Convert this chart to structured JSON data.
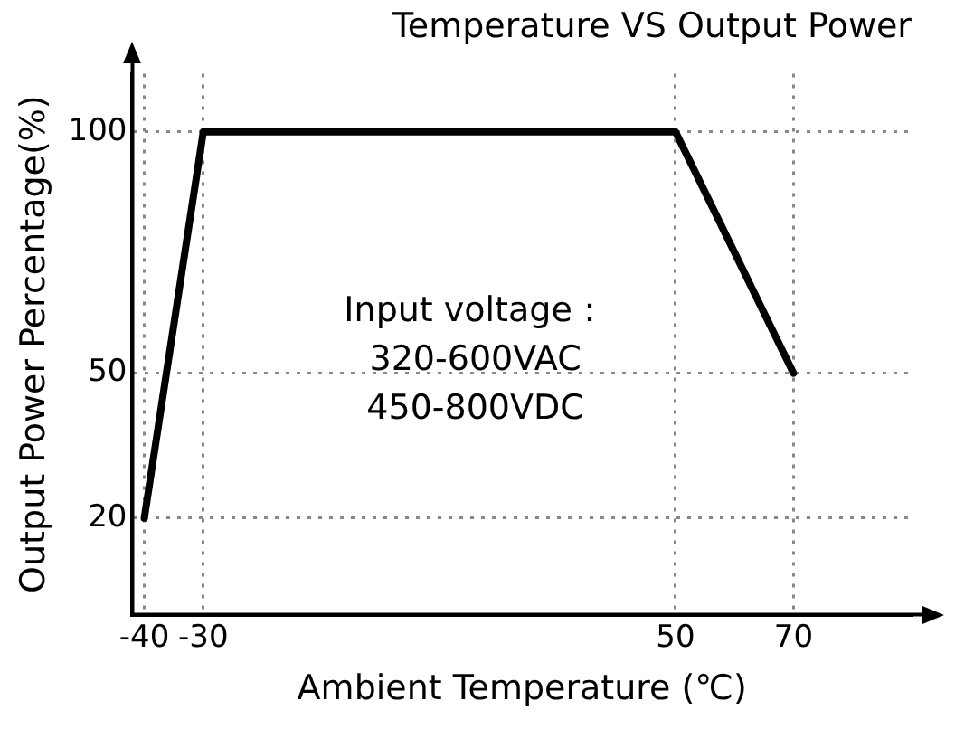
{
  "chart_data": {
    "type": "line",
    "title": "Temperature VS Output Power",
    "xlabel": "Ambient Temperature (℃)",
    "ylabel": "Output Power Percentage(%)",
    "x": [
      -40,
      -30,
      50,
      70
    ],
    "series": [
      {
        "color": "#000000",
        "values": [
          20,
          100,
          100,
          50
        ]
      }
    ],
    "xlim": [
      -42,
      90
    ],
    "xticks": [
      -40,
      -30,
      50,
      70
    ],
    "ylim": [
      0,
      112
    ],
    "yticks": [
      20,
      50,
      100
    ],
    "grid": true,
    "legend": false,
    "marker": "none",
    "line_style": "solid",
    "annotations": [
      "Input voltage：",
      "320-600VAC",
      "450-800VDC"
    ]
  }
}
